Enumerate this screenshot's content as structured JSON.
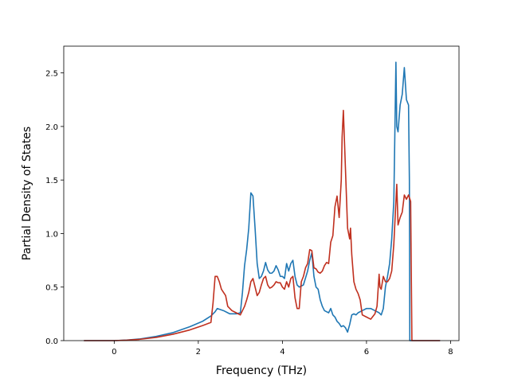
{
  "chart_data": {
    "type": "line",
    "title": "",
    "xlabel": "Frequency (THz)",
    "ylabel": "Partial Density of States",
    "xlim": [
      -1.2,
      8.2
    ],
    "ylim": [
      0.0,
      2.75
    ],
    "xticks": [
      0,
      2,
      4,
      6,
      8
    ],
    "yticks": [
      0.0,
      0.5,
      1.0,
      1.5,
      2.0,
      2.5
    ],
    "xtick_labels": [
      "0",
      "2",
      "4",
      "6",
      "8"
    ],
    "ytick_labels": [
      "0.0",
      "0.5",
      "1.0",
      "1.5",
      "2.0",
      "2.5"
    ],
    "grid": false,
    "legend": "none",
    "series": [
      {
        "color": "#1f77b4",
        "x": [
          -0.72,
          0.0,
          0.3,
          0.6,
          1.0,
          1.4,
          1.8,
          2.1,
          2.3,
          2.4,
          2.45,
          2.6,
          2.75,
          2.9,
          3.0,
          3.05,
          3.1,
          3.15,
          3.2,
          3.25,
          3.3,
          3.35,
          3.4,
          3.45,
          3.5,
          3.55,
          3.6,
          3.65,
          3.7,
          3.75,
          3.8,
          3.85,
          3.9,
          3.95,
          4.0,
          4.05,
          4.1,
          4.15,
          4.2,
          4.25,
          4.3,
          4.35,
          4.4,
          4.5,
          4.6,
          4.65,
          4.7,
          4.75,
          4.8,
          4.85,
          4.9,
          4.95,
          5.0,
          5.05,
          5.1,
          5.15,
          5.2,
          5.25,
          5.3,
          5.35,
          5.4,
          5.45,
          5.5,
          5.55,
          5.6,
          5.65,
          5.7,
          5.75,
          5.8,
          5.9,
          6.0,
          6.1,
          6.2,
          6.3,
          6.35,
          6.4,
          6.45,
          6.5,
          6.55,
          6.6,
          6.65,
          6.7,
          6.72,
          6.75,
          6.8,
          6.85,
          6.9,
          6.95,
          7.0,
          7.02,
          7.03,
          7.05,
          7.1,
          7.75
        ],
        "values": [
          0.0,
          0.0,
          0.005,
          0.015,
          0.04,
          0.075,
          0.13,
          0.18,
          0.23,
          0.27,
          0.3,
          0.28,
          0.25,
          0.25,
          0.26,
          0.45,
          0.7,
          0.85,
          1.05,
          1.38,
          1.35,
          1.05,
          0.72,
          0.58,
          0.6,
          0.65,
          0.73,
          0.66,
          0.63,
          0.63,
          0.65,
          0.7,
          0.66,
          0.6,
          0.6,
          0.58,
          0.72,
          0.65,
          0.72,
          0.75,
          0.6,
          0.52,
          0.5,
          0.52,
          0.65,
          0.75,
          0.82,
          0.6,
          0.5,
          0.48,
          0.38,
          0.32,
          0.28,
          0.27,
          0.26,
          0.3,
          0.24,
          0.22,
          0.18,
          0.16,
          0.13,
          0.14,
          0.12,
          0.08,
          0.15,
          0.24,
          0.25,
          0.24,
          0.26,
          0.28,
          0.3,
          0.3,
          0.28,
          0.26,
          0.24,
          0.3,
          0.5,
          0.6,
          0.72,
          0.95,
          1.3,
          2.6,
          2.0,
          1.95,
          2.2,
          2.3,
          2.55,
          2.25,
          2.2,
          1.5,
          0.0,
          0.0,
          0.0,
          0.0
        ]
      },
      {
        "color": "#c0301f",
        "x": [
          -0.72,
          0.0,
          0.3,
          0.6,
          1.0,
          1.4,
          1.8,
          2.1,
          2.3,
          2.35,
          2.4,
          2.45,
          2.5,
          2.55,
          2.6,
          2.65,
          2.7,
          2.8,
          2.9,
          2.95,
          3.0,
          3.05,
          3.1,
          3.15,
          3.2,
          3.25,
          3.3,
          3.35,
          3.4,
          3.45,
          3.5,
          3.55,
          3.6,
          3.65,
          3.7,
          3.75,
          3.8,
          3.85,
          3.9,
          3.95,
          4.0,
          4.05,
          4.1,
          4.15,
          4.2,
          4.25,
          4.3,
          4.35,
          4.4,
          4.45,
          4.5,
          4.55,
          4.6,
          4.65,
          4.7,
          4.75,
          4.8,
          4.85,
          4.9,
          4.95,
          5.0,
          5.05,
          5.1,
          5.15,
          5.2,
          5.25,
          5.3,
          5.35,
          5.4,
          5.42,
          5.45,
          5.5,
          5.55,
          5.6,
          5.62,
          5.65,
          5.7,
          5.75,
          5.8,
          5.85,
          5.9,
          6.0,
          6.1,
          6.2,
          6.25,
          6.3,
          6.32,
          6.35,
          6.4,
          6.45,
          6.5,
          6.55,
          6.6,
          6.65,
          6.7,
          6.72,
          6.75,
          6.8,
          6.85,
          6.9,
          6.95,
          7.0,
          7.05,
          7.08,
          7.1,
          7.75
        ],
        "values": [
          0.0,
          0.0,
          0.004,
          0.012,
          0.03,
          0.06,
          0.1,
          0.14,
          0.17,
          0.35,
          0.6,
          0.6,
          0.55,
          0.48,
          0.45,
          0.42,
          0.32,
          0.28,
          0.26,
          0.25,
          0.24,
          0.28,
          0.32,
          0.38,
          0.45,
          0.55,
          0.58,
          0.5,
          0.42,
          0.45,
          0.52,
          0.58,
          0.6,
          0.52,
          0.49,
          0.5,
          0.52,
          0.55,
          0.54,
          0.54,
          0.5,
          0.48,
          0.55,
          0.5,
          0.58,
          0.6,
          0.4,
          0.3,
          0.3,
          0.55,
          0.6,
          0.68,
          0.72,
          0.85,
          0.84,
          0.68,
          0.67,
          0.64,
          0.63,
          0.65,
          0.7,
          0.73,
          0.72,
          0.92,
          0.98,
          1.25,
          1.35,
          1.15,
          1.5,
          1.9,
          2.15,
          1.6,
          1.05,
          0.95,
          1.05,
          0.8,
          0.55,
          0.48,
          0.44,
          0.38,
          0.24,
          0.22,
          0.2,
          0.25,
          0.32,
          0.62,
          0.5,
          0.48,
          0.6,
          0.55,
          0.55,
          0.58,
          0.65,
          0.9,
          1.3,
          1.46,
          1.08,
          1.15,
          1.2,
          1.36,
          1.32,
          1.36,
          1.3,
          0.0,
          0.0,
          0.0
        ]
      }
    ]
  }
}
